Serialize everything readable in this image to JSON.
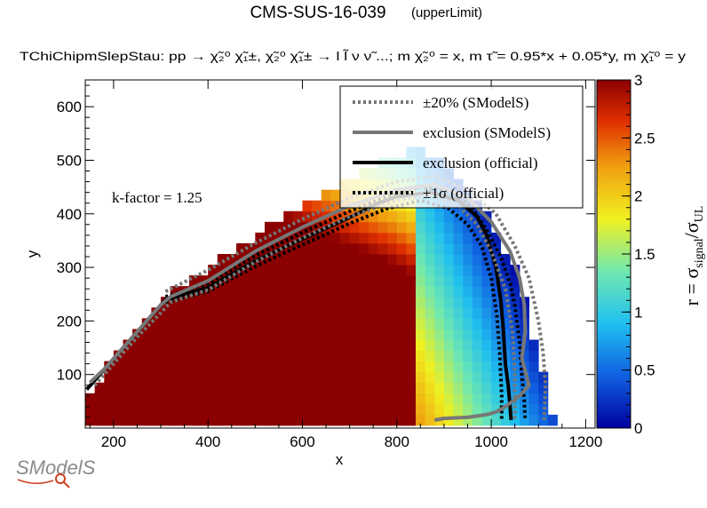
{
  "header": {
    "title": "CMS-SUS-16-039",
    "subtitle": "(upperLimit)",
    "process": "TChiChipmSlepStau: pp  → χ̃₂⁰ χ̃₁±, χ̃₂⁰ χ̃₁±  → l l̃ ν ν̃ ...; m χ̃₂⁰ = x, m τ̃ = 0.95*x + 0.05*y, m χ̃₁⁰ = y",
    "kfactor": "k-factor = 1.25"
  },
  "chart_data": {
    "type": "heatmap",
    "xlabel": "x",
    "ylabel": "y",
    "zlabel": "r = σsignal/σUL",
    "zlabel_main": "r = σ",
    "zlabel_sub1": "signal",
    "zlabel_sep": "/σ",
    "zlabel_sub2": "UL",
    "xlim": [
      140,
      1220
    ],
    "ylim": [
      0,
      650
    ],
    "zlim": [
      0,
      3
    ],
    "xticks": [
      200,
      400,
      600,
      800,
      1000,
      1200
    ],
    "yticks": [
      100,
      200,
      300,
      400,
      500,
      600
    ],
    "zticks": [
      0,
      0.5,
      1,
      1.5,
      2,
      2.5,
      3
    ],
    "xtick_labels": [
      "200",
      "400",
      "600",
      "800",
      "1000",
      "1200"
    ],
    "ytick_labels": [
      "100",
      "200",
      "300",
      "400",
      "500",
      "600"
    ],
    "ztick_labels": [
      "0",
      "0.5",
      "1",
      "1.5",
      "2",
      "2.5",
      "3"
    ],
    "grid": {
      "x0": 150,
      "dx": 20,
      "nx": 54,
      "y0": 15,
      "dy": 20,
      "ny": 32
    },
    "boundary": {
      "x": [
        150,
        310,
        400,
        500,
        600,
        700,
        800,
        850,
        900,
        960,
        1000,
        1050,
        1090,
        1140
      ],
      "y": [
        70,
        250,
        300,
        360,
        410,
        460,
        510,
        520,
        500,
        440,
        380,
        300,
        170,
        0
      ]
    },
    "r_model": {
      "xc": 1040,
      "halfwidth": 150,
      "max": 3
    },
    "curves": [
      {
        "name": "exclusion (official)",
        "color": "#000000",
        "style": "solid",
        "x": [
          143,
          310,
          400,
          500,
          600,
          700,
          760,
          800,
          870,
          930,
          970,
          990,
          1010,
          1020,
          1025,
          1030,
          1036,
          1040,
          1042
        ],
        "y": [
          72,
          240,
          262,
          312,
          353,
          393,
          420,
          432,
          440,
          425,
          395,
          360,
          300,
          240,
          190,
          120,
          80,
          40,
          15
        ]
      },
      {
        "name": "±1σ (official) upper",
        "color": "#000000",
        "style": "dotted",
        "x": [
          310,
          400,
          500,
          600,
          700,
          780,
          850,
          920,
          960,
          990,
          1020,
          1040,
          1050,
          1060,
          1065,
          1070,
          1072
        ],
        "y": [
          245,
          270,
          322,
          365,
          405,
          432,
          450,
          440,
          410,
          370,
          320,
          270,
          230,
          160,
          100,
          50,
          15
        ]
      },
      {
        "name": "±1σ (official) lower",
        "color": "#000000",
        "style": "dotted",
        "x": [
          310,
          400,
          500,
          600,
          700,
          780,
          850,
          910,
          950,
          980,
          1000,
          1012,
          1018,
          1022,
          1022
        ],
        "y": [
          235,
          255,
          302,
          342,
          382,
          410,
          425,
          410,
          380,
          340,
          280,
          210,
          140,
          60,
          15
        ]
      },
      {
        "name": "exclusion (SModelS)",
        "color": "#777777",
        "style": "solid",
        "x": [
          150,
          180,
          220,
          260,
          300,
          320,
          400,
          500,
          600,
          700,
          800,
          880,
          950,
          1000,
          1040,
          1060,
          1070,
          1072,
          1065,
          1080,
          1060,
          1030,
          1010,
          990,
          950,
          900,
          880
        ],
        "y": [
          85,
          110,
          150,
          190,
          230,
          245,
          275,
          330,
          375,
          415,
          445,
          455,
          430,
          385,
          330,
          280,
          230,
          180,
          130,
          80,
          60,
          40,
          30,
          25,
          20,
          18,
          15
        ]
      },
      {
        "name": "±20% (SModelS) upper",
        "color": "#777777",
        "style": "dotted",
        "x": [
          310,
          400,
          500,
          600,
          700,
          800,
          880,
          950,
          1010,
          1050,
          1080,
          1100,
          1110,
          1115,
          1112
        ],
        "y": [
          255,
          295,
          345,
          390,
          430,
          460,
          470,
          445,
          400,
          340,
          280,
          200,
          140,
          80,
          15
        ]
      },
      {
        "name": "±20% (SModelS) lower",
        "color": "#777777",
        "style": "dotted",
        "x": [
          160,
          200,
          250,
          300,
          320,
          400,
          500,
          600,
          700,
          800,
          870,
          930,
          970,
          1000,
          1030,
          1045,
          1050,
          1050
        ],
        "y": [
          80,
          120,
          170,
          215,
          235,
          258,
          310,
          355,
          395,
          425,
          435,
          415,
          380,
          330,
          260,
          180,
          100,
          15
        ]
      }
    ],
    "legend": {
      "placement": "top-right",
      "entries": [
        {
          "label": "±20% (SModelS)",
          "color": "#777777",
          "style": "dotted"
        },
        {
          "label": "exclusion (SModelS)",
          "color": "#777777",
          "style": "solid"
        },
        {
          "label": "exclusion (official)",
          "color": "#000000",
          "style": "solid"
        },
        {
          "label": "±1σ (official)",
          "color": "#000000",
          "style": "dotted"
        }
      ]
    }
  },
  "logo": {
    "text": "SModelS"
  }
}
